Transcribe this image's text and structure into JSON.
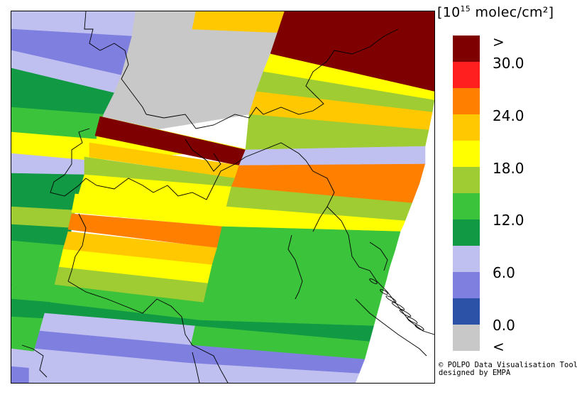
{
  "legend": {
    "unit_prefix": "[10",
    "unit_exp": "15",
    "unit_suffix": " molec/cm²]",
    "colors": [
      "#7f0000",
      "#ff1f1f",
      "#ff7f00",
      "#ffc800",
      "#ffff00",
      "#9fcc33",
      "#3cc33c",
      "#119944",
      "#c0c0f0",
      "#7f7fe0",
      "#2c52a8",
      "#c8c8c8"
    ],
    "labels": [
      ">",
      "30.0",
      "24.0",
      "18.0",
      "12.0",
      "6.0",
      "0.0",
      "<"
    ]
  },
  "credit": {
    "line1": "© POLPO Data Visualisation Tool",
    "line2": "designed by EMPA"
  },
  "map": {
    "no_data_color": "#c8c8c8",
    "land_color": "#ffffff"
  }
}
